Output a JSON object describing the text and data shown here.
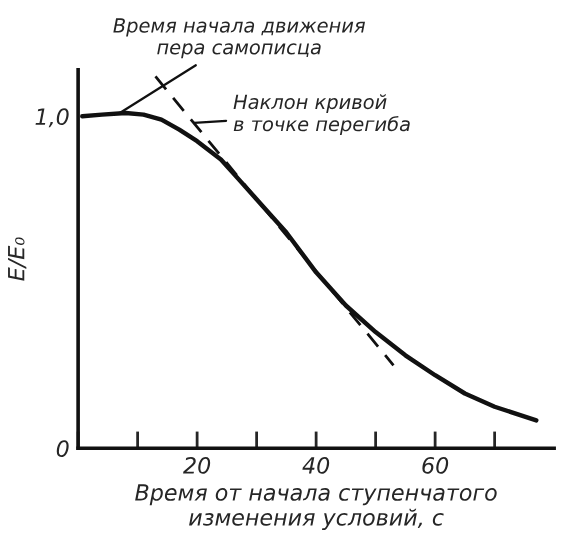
{
  "chart_data": {
    "type": "line",
    "xlabel": "Время от начала ступенчатого\nизменения условий, с",
    "ylabel": "E/E₀",
    "xlim": [
      0,
      80
    ],
    "ylim": [
      0,
      1.14
    ],
    "xticks": [
      {
        "value": 0,
        "label": null
      },
      {
        "value": 10,
        "label": null
      },
      20,
      {
        "value": 30,
        "label": null
      },
      40,
      {
        "value": 50,
        "label": null
      },
      60,
      {
        "value": 70,
        "label": null
      }
    ],
    "yticks": [
      0,
      {
        "value": 1.0,
        "label": "1,0"
      }
    ],
    "grid": false,
    "legend": false,
    "marker": "none",
    "series": [
      {
        "color": "#111111",
        "line_style": "solid",
        "x": [
          0.7,
          4,
          8,
          11,
          14,
          17,
          20,
          24,
          27,
          31,
          35,
          40,
          45,
          50,
          55,
          60,
          65,
          70,
          77
        ],
        "values": [
          1.0,
          1.005,
          1.01,
          1.005,
          0.99,
          0.96,
          0.925,
          0.87,
          0.81,
          0.73,
          0.65,
          0.53,
          0.43,
          0.35,
          0.28,
          0.22,
          0.165,
          0.125,
          0.084
        ]
      },
      {
        "color": "#111111",
        "line_style": "dashed",
        "x": [
          13,
          53
        ],
        "values": [
          1.12,
          0.25
        ]
      }
    ],
    "annotations": [
      {
        "text": "Время начала движения\nпера самописца",
        "x": 7,
        "y": 1.01
      },
      {
        "text": "Наклон кривой\nв точке перегиба",
        "x": 19.5,
        "y": 0.98
      }
    ]
  }
}
